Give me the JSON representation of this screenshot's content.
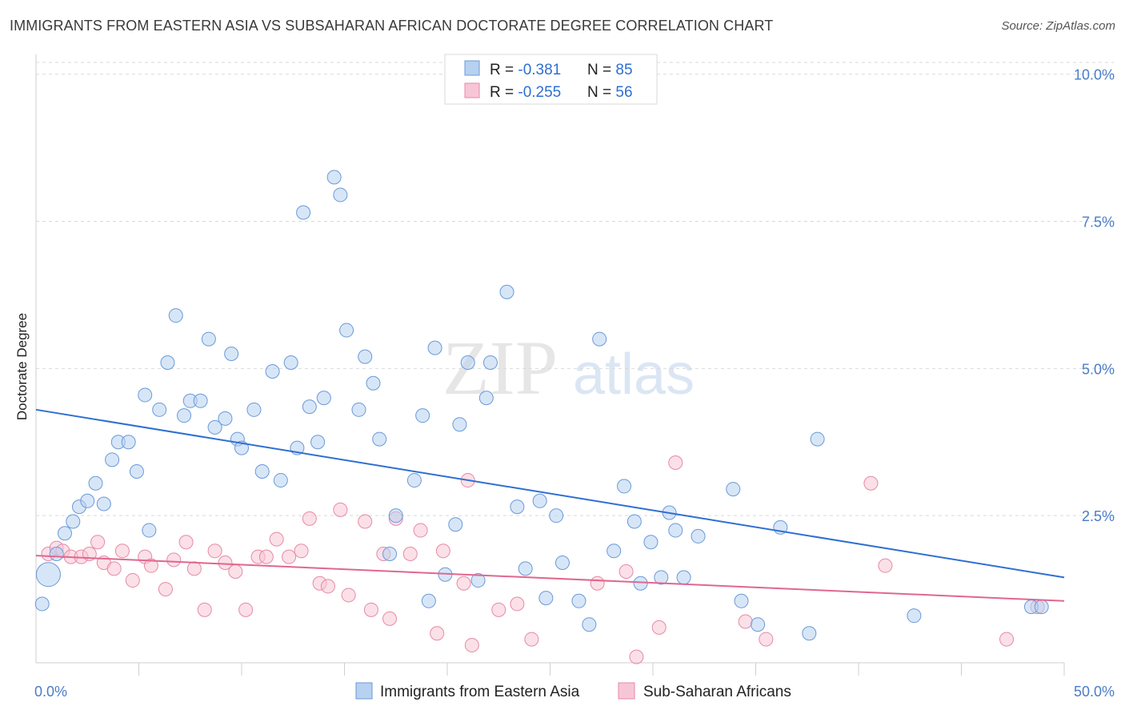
{
  "title": "IMMIGRANTS FROM EASTERN ASIA VS SUBSAHARAN AFRICAN DOCTORATE DEGREE CORRELATION CHART",
  "source": "Source: ZipAtlas.com",
  "watermark": {
    "zip": "ZIP",
    "atlas": "atlas"
  },
  "colors": {
    "blue_fill": "#b7d1f0",
    "blue_stroke": "#6a9ad8",
    "blue_line": "#2f6fd1",
    "pink_fill": "#f7c6d6",
    "pink_stroke": "#e58aa8",
    "pink_line": "#e0678f",
    "grid": "#d9d9d9",
    "axis_text": "#4a7cc7"
  },
  "legend": {
    "rows": [
      {
        "r_label": "R = ",
        "r_value": "-0.381",
        "n_label": "N = ",
        "n_value": "85",
        "color": "blue"
      },
      {
        "r_label": "R = ",
        "r_value": "-0.255",
        "n_label": "N = ",
        "n_value": "56",
        "color": "pink"
      }
    ]
  },
  "chart_data": {
    "type": "scatter",
    "title": "IMMIGRANTS FROM EASTERN ASIA VS SUBSAHARAN AFRICAN DOCTORATE DEGREE CORRELATION CHART",
    "xlabel": "",
    "ylabel": "Doctorate Degree",
    "xlim": [
      0,
      50
    ],
    "ylim": [
      0,
      10.2
    ],
    "x_tick_labels": [
      "0.0%",
      "50.0%"
    ],
    "y_ticks": [
      2.5,
      5.0,
      7.5,
      10.0
    ],
    "y_tick_labels": [
      "2.5%",
      "5.0%",
      "7.5%",
      "10.0%"
    ],
    "grid": "horizontal dashed",
    "legend_position": "top-center",
    "series": [
      {
        "name": "Immigrants from Eastern Asia",
        "color": "blue",
        "trend": {
          "x": [
            0,
            50
          ],
          "y": [
            4.3,
            1.45
          ]
        },
        "points": [
          [
            0.3,
            1.0
          ],
          [
            0.6,
            1.5
          ],
          [
            1.0,
            1.85
          ],
          [
            1.4,
            2.2
          ],
          [
            1.8,
            2.4
          ],
          [
            2.1,
            2.65
          ],
          [
            2.5,
            2.75
          ],
          [
            2.9,
            3.05
          ],
          [
            3.3,
            2.7
          ],
          [
            3.7,
            3.45
          ],
          [
            4.0,
            3.75
          ],
          [
            4.5,
            3.75
          ],
          [
            4.9,
            3.25
          ],
          [
            5.3,
            4.55
          ],
          [
            5.5,
            2.25
          ],
          [
            6.0,
            4.3
          ],
          [
            6.4,
            5.1
          ],
          [
            6.8,
            5.9
          ],
          [
            7.2,
            4.2
          ],
          [
            7.5,
            4.45
          ],
          [
            8.0,
            4.45
          ],
          [
            8.4,
            5.5
          ],
          [
            8.7,
            4.0
          ],
          [
            9.2,
            4.15
          ],
          [
            9.5,
            5.25
          ],
          [
            9.8,
            3.8
          ],
          [
            10.0,
            3.65
          ],
          [
            10.6,
            4.3
          ],
          [
            11.0,
            3.25
          ],
          [
            11.5,
            4.95
          ],
          [
            11.9,
            3.1
          ],
          [
            12.4,
            5.1
          ],
          [
            12.7,
            3.65
          ],
          [
            13.0,
            7.65
          ],
          [
            13.3,
            4.35
          ],
          [
            13.7,
            3.75
          ],
          [
            14.0,
            4.5
          ],
          [
            14.5,
            8.25
          ],
          [
            14.8,
            7.95
          ],
          [
            15.1,
            5.65
          ],
          [
            15.7,
            4.3
          ],
          [
            16.0,
            5.2
          ],
          [
            16.4,
            4.75
          ],
          [
            16.7,
            3.8
          ],
          [
            17.2,
            1.85
          ],
          [
            17.5,
            2.5
          ],
          [
            18.4,
            3.1
          ],
          [
            18.8,
            4.2
          ],
          [
            19.1,
            1.05
          ],
          [
            19.4,
            5.35
          ],
          [
            19.9,
            1.5
          ],
          [
            20.4,
            2.35
          ],
          [
            20.6,
            4.05
          ],
          [
            21.0,
            5.1
          ],
          [
            21.5,
            1.4
          ],
          [
            21.9,
            4.5
          ],
          [
            22.1,
            5.1
          ],
          [
            22.9,
            6.3
          ],
          [
            23.4,
            2.65
          ],
          [
            23.8,
            1.6
          ],
          [
            24.5,
            2.75
          ],
          [
            24.8,
            1.1
          ],
          [
            25.3,
            2.5
          ],
          [
            25.6,
            1.7
          ],
          [
            26.4,
            1.05
          ],
          [
            26.9,
            0.65
          ],
          [
            27.4,
            5.5
          ],
          [
            28.1,
            1.9
          ],
          [
            28.6,
            3.0
          ],
          [
            29.1,
            2.4
          ],
          [
            29.4,
            1.35
          ],
          [
            29.9,
            2.05
          ],
          [
            30.4,
            1.45
          ],
          [
            30.8,
            2.55
          ],
          [
            31.1,
            2.25
          ],
          [
            31.5,
            1.45
          ],
          [
            32.2,
            2.15
          ],
          [
            33.9,
            2.95
          ],
          [
            34.3,
            1.05
          ],
          [
            35.1,
            0.65
          ],
          [
            36.2,
            2.3
          ],
          [
            37.6,
            0.5
          ],
          [
            38.0,
            3.8
          ],
          [
            42.7,
            0.8
          ],
          [
            48.4,
            0.95
          ],
          [
            48.9,
            0.95
          ]
        ],
        "sizes": {
          "0.3,1.0": 34,
          "0.6,1.5": 30,
          "1.0,1.85": 24
        }
      },
      {
        "name": "Sub-Saharan Africans",
        "color": "pink",
        "trend": {
          "x": [
            0,
            50
          ],
          "y": [
            1.82,
            1.05
          ]
        },
        "points": [
          [
            0.6,
            1.85
          ],
          [
            1.0,
            1.95
          ],
          [
            1.3,
            1.9
          ],
          [
            1.7,
            1.8
          ],
          [
            2.2,
            1.8
          ],
          [
            2.6,
            1.85
          ],
          [
            3.0,
            2.05
          ],
          [
            3.3,
            1.7
          ],
          [
            3.8,
            1.6
          ],
          [
            4.2,
            1.9
          ],
          [
            4.7,
            1.4
          ],
          [
            5.3,
            1.8
          ],
          [
            5.6,
            1.65
          ],
          [
            6.3,
            1.25
          ],
          [
            6.7,
            1.75
          ],
          [
            7.3,
            2.05
          ],
          [
            7.7,
            1.6
          ],
          [
            8.2,
            0.9
          ],
          [
            8.7,
            1.9
          ],
          [
            9.2,
            1.7
          ],
          [
            9.7,
            1.55
          ],
          [
            10.2,
            0.9
          ],
          [
            10.8,
            1.8
          ],
          [
            11.2,
            1.8
          ],
          [
            11.7,
            2.1
          ],
          [
            12.3,
            1.8
          ],
          [
            12.9,
            1.9
          ],
          [
            13.3,
            2.45
          ],
          [
            13.8,
            1.35
          ],
          [
            14.2,
            1.3
          ],
          [
            14.8,
            2.6
          ],
          [
            15.2,
            1.15
          ],
          [
            16.0,
            2.4
          ],
          [
            16.3,
            0.9
          ],
          [
            16.9,
            1.85
          ],
          [
            17.2,
            0.75
          ],
          [
            17.5,
            2.45
          ],
          [
            18.2,
            1.85
          ],
          [
            18.7,
            2.25
          ],
          [
            19.5,
            0.5
          ],
          [
            19.8,
            1.9
          ],
          [
            20.8,
            1.35
          ],
          [
            21.0,
            3.1
          ],
          [
            21.2,
            0.3
          ],
          [
            22.5,
            0.9
          ],
          [
            23.4,
            1.0
          ],
          [
            24.1,
            0.4
          ],
          [
            27.3,
            1.35
          ],
          [
            28.7,
            1.55
          ],
          [
            29.2,
            0.1
          ],
          [
            30.3,
            0.6
          ],
          [
            31.1,
            3.4
          ],
          [
            34.5,
            0.7
          ],
          [
            35.5,
            0.4
          ],
          [
            40.6,
            3.05
          ],
          [
            41.3,
            1.65
          ],
          [
            47.2,
            0.4
          ],
          [
            48.7,
            0.95
          ]
        ]
      }
    ]
  }
}
